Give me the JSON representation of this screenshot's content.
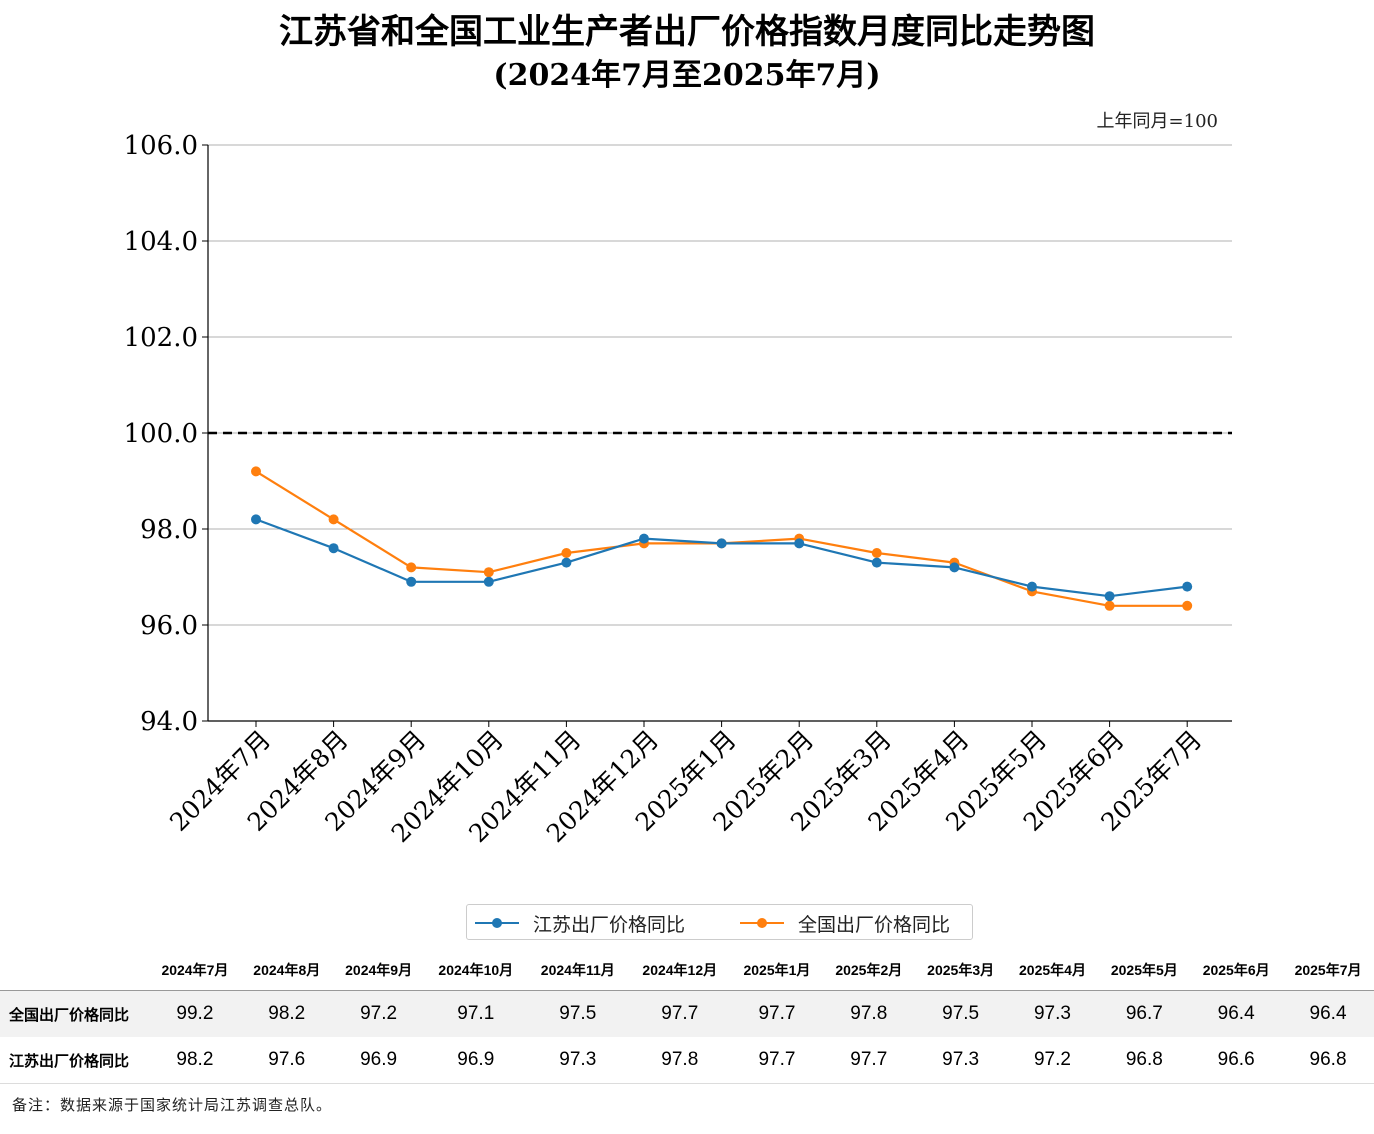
{
  "title_line1": "江苏省和全国工业生产者出厂价格指数月度同比走势图",
  "title_line2": "(2024年7月至2025年7月)",
  "unit_note": "上年同月=100",
  "colors": {
    "jiangsu": "#1f77b4",
    "national": "#ff7f0e",
    "reference": "#000000",
    "grid": "#b0b0b0"
  },
  "chart_data": {
    "type": "line",
    "categories": [
      "2024年7月",
      "2024年8月",
      "2024年9月",
      "2024年10月",
      "2024年11月",
      "2024年12月",
      "2025年1月",
      "2025年2月",
      "2025年3月",
      "2025年4月",
      "2025年5月",
      "2025年6月",
      "2025年7月"
    ],
    "series": [
      {
        "name": "江苏出厂价格同比",
        "color": "#1f77b4",
        "values": [
          98.2,
          97.6,
          96.9,
          96.9,
          97.3,
          97.8,
          97.7,
          97.7,
          97.3,
          97.2,
          96.8,
          96.6,
          96.8
        ]
      },
      {
        "name": "全国出厂价格同比",
        "color": "#ff7f0e",
        "values": [
          99.2,
          98.2,
          97.2,
          97.1,
          97.5,
          97.7,
          97.7,
          97.8,
          97.5,
          97.3,
          96.7,
          96.4,
          96.4
        ]
      }
    ],
    "ylim": [
      94.0,
      106.0
    ],
    "yticks": [
      "94.0",
      "96.0",
      "98.0",
      "100.0",
      "102.0",
      "104.0",
      "106.0"
    ],
    "reference_line": 100.0,
    "grid": "horizontal",
    "legend_position": "bottom-center"
  },
  "legend": {
    "jiangsu": "江苏出厂价格同比",
    "national": "全国出厂价格同比"
  },
  "table": {
    "headers": [
      "2024年7月",
      "2024年8月",
      "2024年9月",
      "2024年10月",
      "2024年11月",
      "2024年12月",
      "2025年1月",
      "2025年2月",
      "2025年3月",
      "2025年4月",
      "2025年5月",
      "2025年6月",
      "2025年7月"
    ],
    "rows": [
      {
        "label": "全国出厂价格同比",
        "values": [
          "99.2",
          "98.2",
          "97.2",
          "97.1",
          "97.5",
          "97.7",
          "97.7",
          "97.8",
          "97.5",
          "97.3",
          "96.7",
          "96.4",
          "96.4"
        ]
      },
      {
        "label": "江苏出厂价格同比",
        "values": [
          "98.2",
          "97.6",
          "96.9",
          "96.9",
          "97.3",
          "97.8",
          "97.7",
          "97.7",
          "97.3",
          "97.2",
          "96.8",
          "96.6",
          "96.8"
        ]
      }
    ]
  },
  "footnote": "备注：数据来源于国家统计局江苏调查总队。"
}
